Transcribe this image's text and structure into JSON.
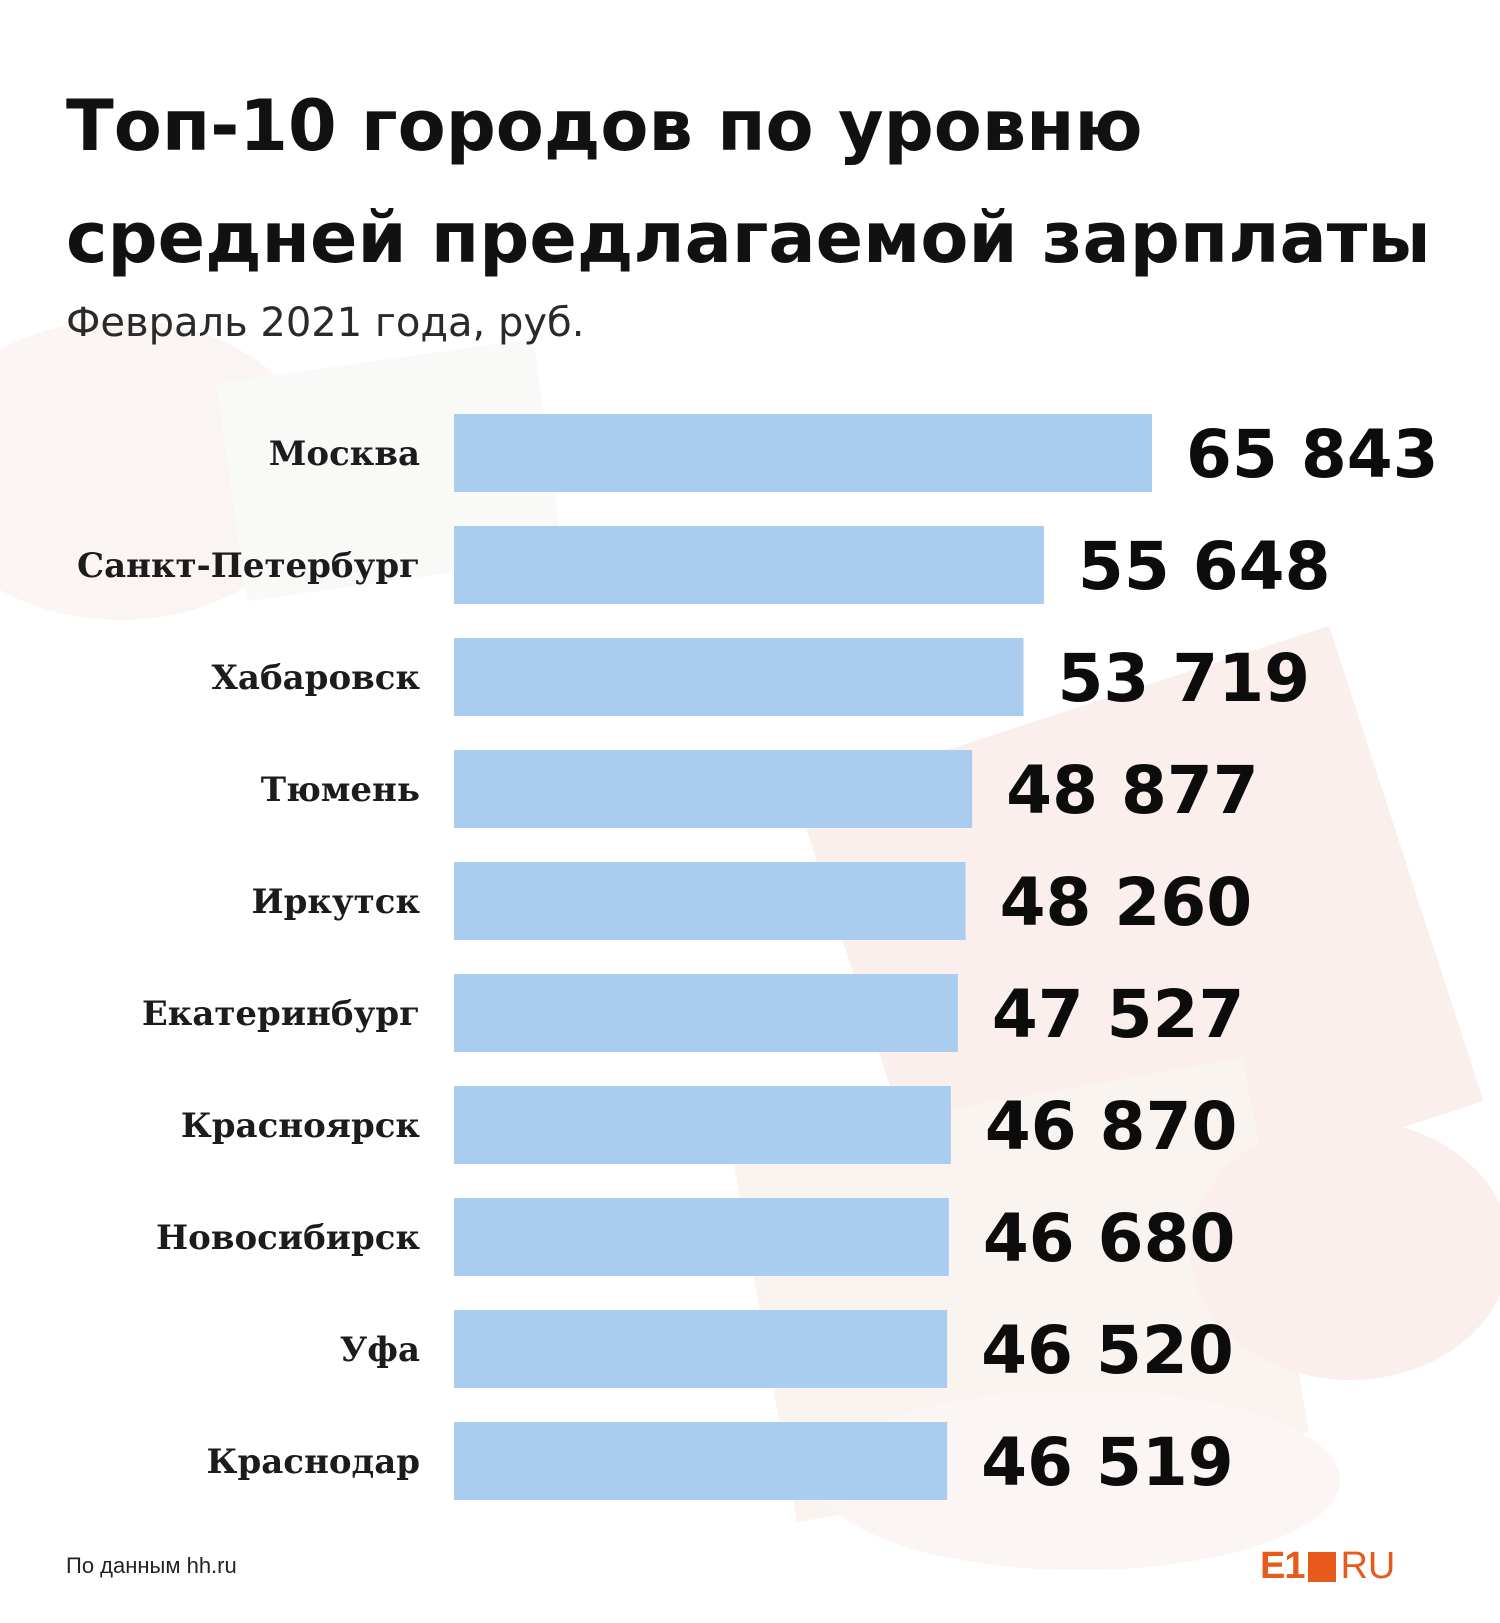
{
  "title_lines": [
    "Топ-10 городов по уровню",
    "средней предлагаемой зарплаты"
  ],
  "subtitle": "Февраль 2021 года, руб.",
  "source": "По данным hh.ru",
  "logo": {
    "left": "E1",
    "right": "RU"
  },
  "colors": {
    "bar": "#aaccee",
    "text": "#111111",
    "brand": "#e85a1c"
  },
  "chart_data": {
    "type": "bar",
    "orientation": "horizontal",
    "title": "Топ-10 городов по уровню средней предлагаемой зарплаты",
    "subtitle": "Февраль 2021 года, руб.",
    "categories": [
      "Москва",
      "Санкт-Петербург",
      "Хабаровск",
      "Тюмень",
      "Иркутск",
      "Екатеринбург",
      "Красноярск",
      "Новосибирск",
      "Уфа",
      "Краснодар"
    ],
    "values": [
      65843,
      55648,
      53719,
      48877,
      48260,
      47527,
      46870,
      46680,
      46520,
      46519
    ],
    "value_labels": [
      "65 843",
      "55 648",
      "53 719",
      "48 877",
      "48 260",
      "47 527",
      "46 870",
      "46 680",
      "46 520",
      "46 519"
    ],
    "xlabel": "",
    "ylabel": ""
  }
}
